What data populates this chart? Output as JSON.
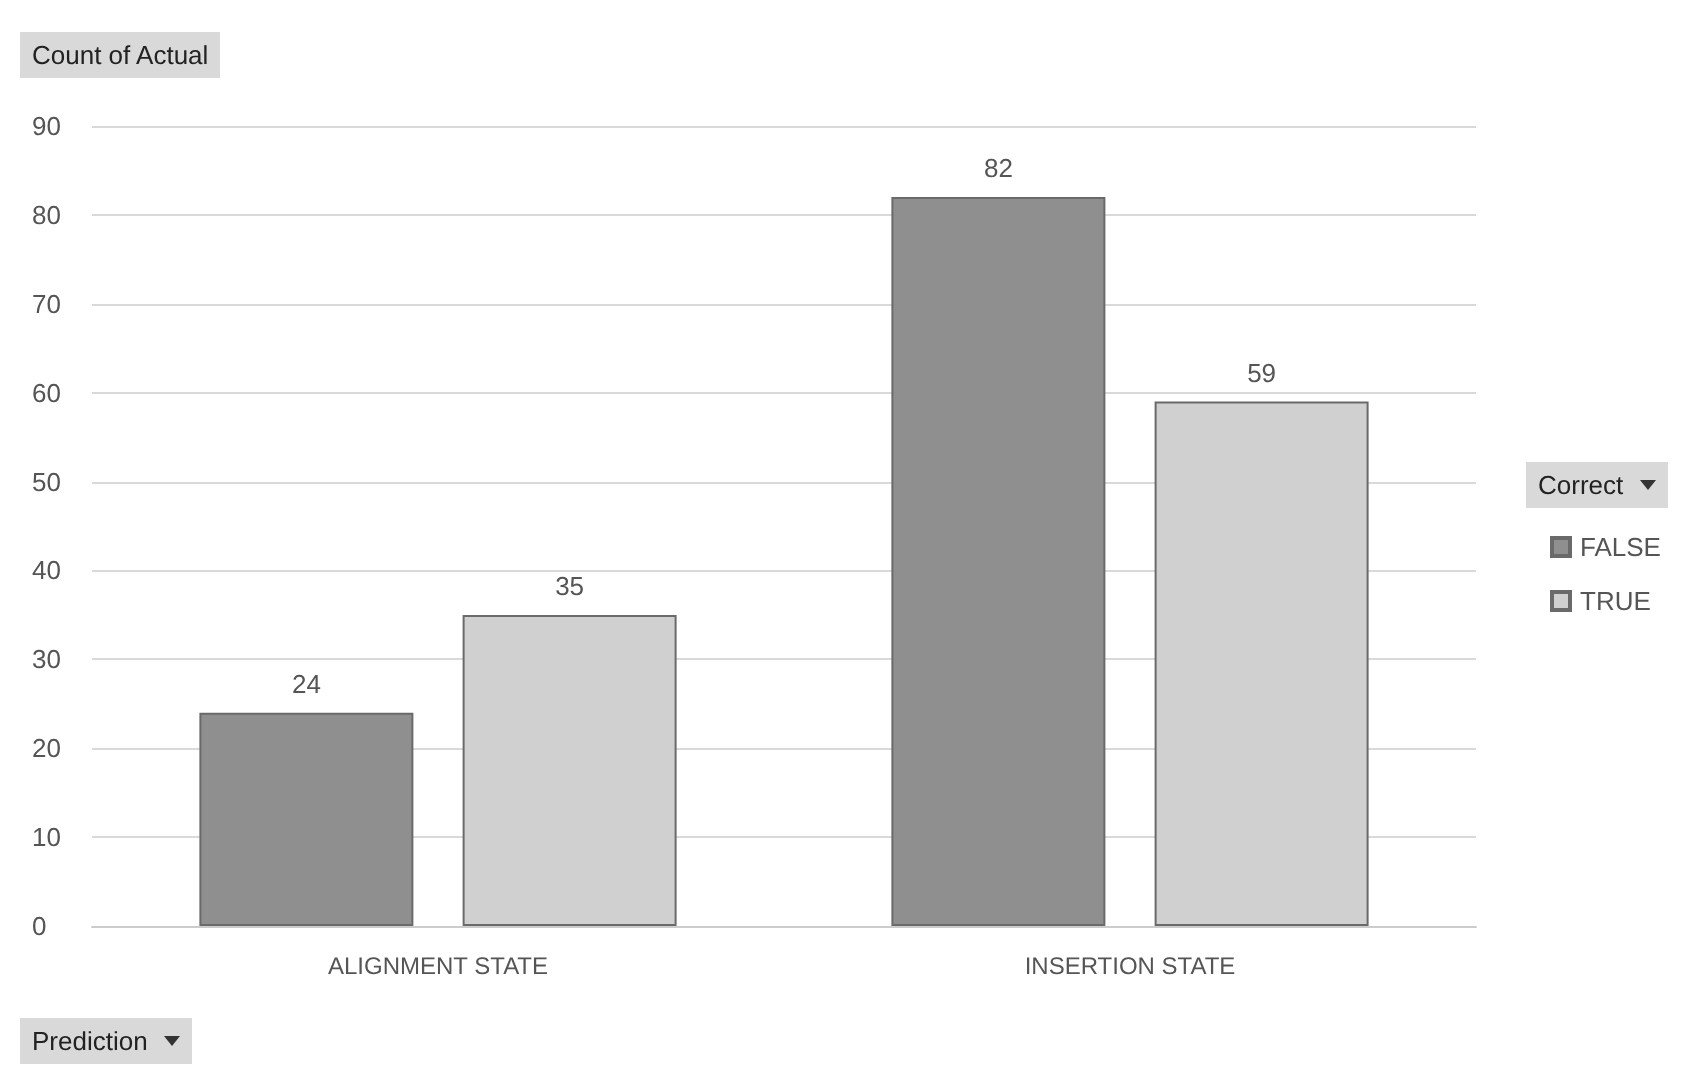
{
  "chart_data": {
    "type": "bar",
    "ylabel": "Count of Actual",
    "xlabel": "Prediction",
    "legend_title": "Correct",
    "categories": [
      "ALIGNMENT STATE",
      "INSERTION STATE"
    ],
    "series": [
      {
        "name": "FALSE",
        "color": "#8f8f8f",
        "values": [
          24,
          82
        ]
      },
      {
        "name": "TRUE",
        "color": "#d0d0d0",
        "values": [
          35,
          59
        ]
      }
    ],
    "ylim": [
      0,
      90
    ],
    "yticks": [
      0,
      10,
      20,
      30,
      40,
      50,
      60,
      70,
      80,
      90
    ],
    "grid": "y",
    "legend": "right",
    "data_labels": true
  }
}
